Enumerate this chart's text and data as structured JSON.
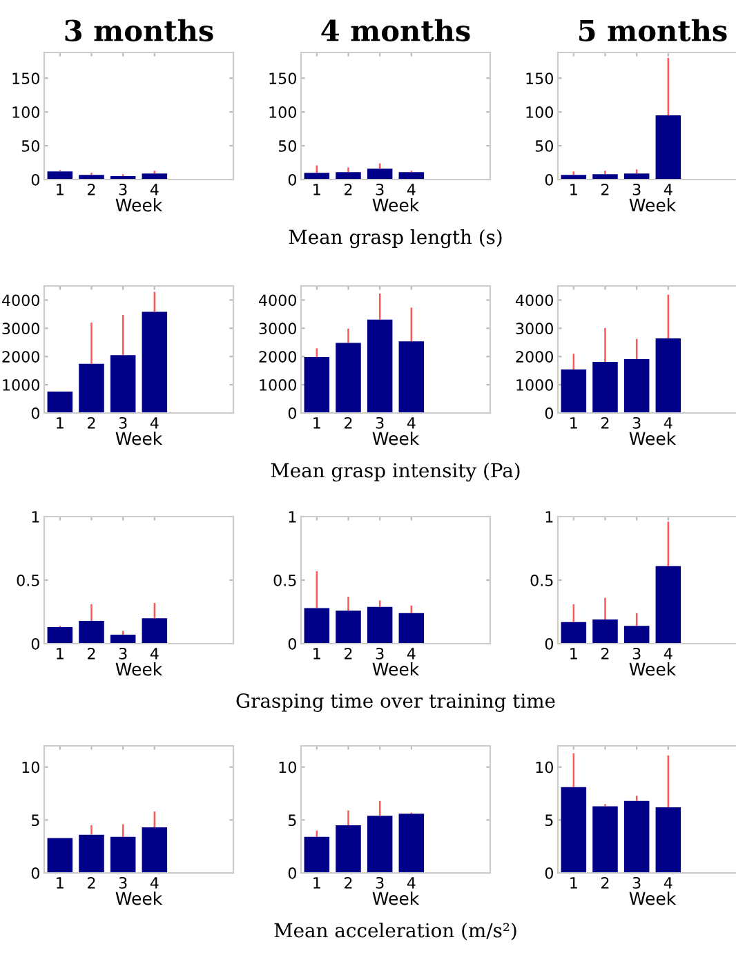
{
  "chart_data": [
    {
      "type": "bar",
      "title": "3 months",
      "xlabel": "Week",
      "categories": [
        "1",
        "2",
        "3",
        "4"
      ],
      "series": [
        {
          "color": "#000088",
          "values": [
            12,
            7,
            5,
            9
          ],
          "errors": [
            [
              12,
              14
            ],
            [
              7,
              10
            ],
            [
              5,
              8
            ],
            [
              9,
              13
            ]
          ]
        }
      ],
      "ylim": [
        0,
        188
      ],
      "yticks": [
        0,
        50,
        100,
        150
      ],
      "grid": false,
      "legend": false
    },
    {
      "type": "bar",
      "title": "4 months",
      "xlabel": "Week",
      "categories": [
        "1",
        "2",
        "3",
        "4"
      ],
      "series": [
        {
          "color": "#000088",
          "values": [
            10,
            11,
            16,
            11
          ],
          "errors": [
            [
              10,
              21
            ],
            [
              11,
              18
            ],
            [
              16,
              24
            ],
            [
              11,
              13
            ]
          ]
        }
      ],
      "ylim": [
        0,
        188
      ],
      "yticks": [
        0,
        50,
        100,
        150
      ],
      "grid": false,
      "legend": false,
      "annotations": [
        "Mean grasp length (s)"
      ]
    },
    {
      "type": "bar",
      "title": "5 months",
      "xlabel": "Week",
      "categories": [
        "1",
        "2",
        "3",
        "4"
      ],
      "series": [
        {
          "color": "#000088",
          "values": [
            7,
            8,
            9,
            95
          ],
          "errors": [
            [
              7,
              12
            ],
            [
              8,
              13
            ],
            [
              9,
              15
            ],
            [
              95,
              180
            ]
          ]
        }
      ],
      "ylim": [
        0,
        188
      ],
      "yticks": [
        0,
        50,
        100,
        150
      ],
      "grid": false,
      "legend": false
    },
    {
      "type": "bar",
      "xlabel": "Week",
      "categories": [
        "1",
        "2",
        "3",
        "4"
      ],
      "series": [
        {
          "color": "#000088",
          "values": [
            760,
            1740,
            2050,
            3580
          ],
          "errors": [
            null,
            [
              1740,
              3200
            ],
            [
              2050,
              3470
            ],
            [
              3580,
              4290
            ]
          ]
        }
      ],
      "ylim": [
        0,
        4500
      ],
      "yticks": [
        0,
        1000,
        2000,
        3000,
        4000
      ],
      "grid": false,
      "legend": false
    },
    {
      "type": "bar",
      "xlabel": "Week",
      "categories": [
        "1",
        "2",
        "3",
        "4"
      ],
      "series": [
        {
          "color": "#000088",
          "values": [
            1980,
            2480,
            3310,
            2540
          ],
          "errors": [
            [
              1980,
              2290
            ],
            [
              2480,
              2990
            ],
            [
              3310,
              4230
            ],
            [
              2540,
              3730
            ]
          ]
        }
      ],
      "ylim": [
        0,
        4500
      ],
      "yticks": [
        0,
        1000,
        2000,
        3000,
        4000
      ],
      "grid": false,
      "legend": false,
      "annotations": [
        "Mean grasp intensity (Pa)"
      ]
    },
    {
      "type": "bar",
      "xlabel": "Week",
      "categories": [
        "1",
        "2",
        "3",
        "4"
      ],
      "series": [
        {
          "color": "#000088",
          "values": [
            1540,
            1810,
            1910,
            2640
          ],
          "errors": [
            [
              1540,
              2100
            ],
            [
              1810,
              3010
            ],
            [
              1910,
              2620
            ],
            [
              2640,
              4190
            ]
          ]
        }
      ],
      "ylim": [
        0,
        4500
      ],
      "yticks": [
        0,
        1000,
        2000,
        3000,
        4000
      ],
      "grid": false,
      "legend": false
    },
    {
      "type": "bar",
      "xlabel": "Week",
      "categories": [
        "1",
        "2",
        "3",
        "4"
      ],
      "series": [
        {
          "color": "#000088",
          "values": [
            0.13,
            0.18,
            0.07,
            0.2
          ],
          "errors": [
            [
              0.13,
              0.14
            ],
            [
              0.18,
              0.31
            ],
            [
              0.07,
              0.1
            ],
            [
              0.2,
              0.32
            ]
          ]
        }
      ],
      "ylim": [
        0,
        1
      ],
      "yticks": [
        0,
        0.5,
        1
      ],
      "grid": false,
      "legend": false
    },
    {
      "type": "bar",
      "xlabel": "Week",
      "categories": [
        "1",
        "2",
        "3",
        "4"
      ],
      "series": [
        {
          "color": "#000088",
          "values": [
            0.28,
            0.26,
            0.29,
            0.24
          ],
          "errors": [
            [
              0.28,
              0.57
            ],
            [
              0.26,
              0.37
            ],
            [
              0.29,
              0.34
            ],
            [
              0.24,
              0.3
            ]
          ]
        }
      ],
      "ylim": [
        0,
        1
      ],
      "yticks": [
        0,
        0.5,
        1
      ],
      "grid": false,
      "legend": false,
      "annotations": [
        "Grasping time over training time"
      ]
    },
    {
      "type": "bar",
      "xlabel": "Week",
      "categories": [
        "1",
        "2",
        "3",
        "4"
      ],
      "series": [
        {
          "color": "#000088",
          "values": [
            0.17,
            0.19,
            0.14,
            0.61
          ],
          "errors": [
            [
              0.17,
              0.31
            ],
            [
              0.19,
              0.36
            ],
            [
              0.14,
              0.24
            ],
            [
              0.61,
              0.96
            ]
          ]
        }
      ],
      "ylim": [
        0,
        1
      ],
      "yticks": [
        0,
        0.5,
        1
      ],
      "grid": false,
      "legend": false
    },
    {
      "type": "bar",
      "xlabel": "Week",
      "categories": [
        "1",
        "2",
        "3",
        "4"
      ],
      "series": [
        {
          "color": "#000088",
          "values": [
            3.3,
            3.6,
            3.4,
            4.3
          ],
          "errors": [
            null,
            [
              3.6,
              4.5
            ],
            [
              3.4,
              4.6
            ],
            [
              4.3,
              5.8
            ]
          ]
        }
      ],
      "ylim": [
        0,
        12
      ],
      "yticks": [
        0,
        5,
        10
      ],
      "grid": false,
      "legend": false
    },
    {
      "type": "bar",
      "xlabel": "Week",
      "categories": [
        "1",
        "2",
        "3",
        "4"
      ],
      "series": [
        {
          "color": "#000088",
          "values": [
            3.4,
            4.5,
            5.4,
            5.6
          ],
          "errors": [
            [
              3.4,
              4.0
            ],
            [
              4.5,
              5.9
            ],
            [
              5.4,
              6.8
            ],
            [
              5.6,
              5.7
            ]
          ]
        }
      ],
      "ylim": [
        0,
        12
      ],
      "yticks": [
        0,
        5,
        10
      ],
      "grid": false,
      "legend": false,
      "annotations": [
        "Mean acceleration (m/s²)"
      ]
    },
    {
      "type": "bar",
      "xlabel": "Week",
      "categories": [
        "1",
        "2",
        "3",
        "4"
      ],
      "series": [
        {
          "color": "#000088",
          "values": [
            8.1,
            6.3,
            6.8,
            6.2
          ],
          "errors": [
            [
              8.1,
              11.3
            ],
            [
              6.3,
              6.5
            ],
            [
              6.8,
              7.3
            ],
            [
              6.2,
              11.1
            ]
          ]
        }
      ],
      "ylim": [
        0,
        12
      ],
      "yticks": [
        0,
        5,
        10
      ],
      "grid": false,
      "legend": false
    }
  ]
}
